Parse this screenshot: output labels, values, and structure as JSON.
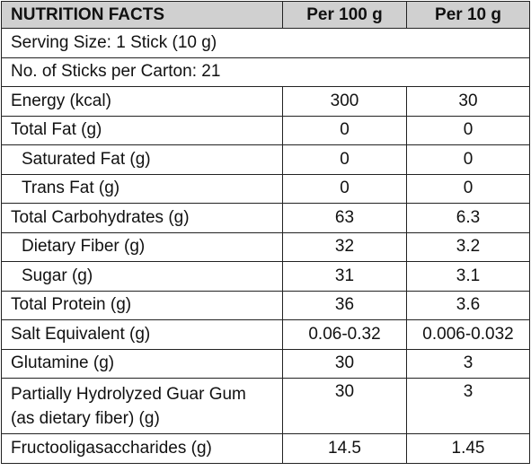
{
  "header": {
    "title": "NUTRITION FACTS",
    "col_100g": "Per 100 g",
    "col_10g": "Per 10 g"
  },
  "info": {
    "serving_size": "Serving Size: 1 Stick (10 g)",
    "sticks_per_carton": "No. of Sticks per Carton: 21"
  },
  "rows": [
    {
      "label": "Energy (kcal)",
      "per100": "300",
      "per10": "30"
    },
    {
      "label": "Total Fat (g)",
      "per100": "0",
      "per10": "0"
    },
    {
      "label": "Saturated Fat (g)",
      "per100": "0",
      "per10": "0"
    },
    {
      "label": "Trans Fat (g)",
      "per100": "0",
      "per10": "0"
    },
    {
      "label": "Total Carbohydrates (g)",
      "per100": "63",
      "per10": "6.3"
    },
    {
      "label": "Dietary Fiber (g)",
      "per100": "32",
      "per10": "3.2"
    },
    {
      "label": "Sugar (g)",
      "per100": "31",
      "per10": "3.1"
    },
    {
      "label": "Total Protein (g)",
      "per100": "36",
      "per10": "3.6"
    },
    {
      "label": "Salt Equivalent (g)",
      "per100": "0.06-0.32",
      "per10": "0.006-0.032"
    },
    {
      "label": "Glutamine (g)",
      "per100": "30",
      "per10": "3"
    },
    {
      "label_line1": "Partially Hydrolyzed Guar Gum",
      "label_line2": "(as dietary fiber) (g)",
      "per100": "30",
      "per10": "3"
    },
    {
      "label": "Fructooligasaccharides (g)",
      "per100": "14.5",
      "per10": "1.45"
    }
  ],
  "colors": {
    "header_bg": "#d0d0d0",
    "border": "#222222",
    "text": "#111111"
  }
}
